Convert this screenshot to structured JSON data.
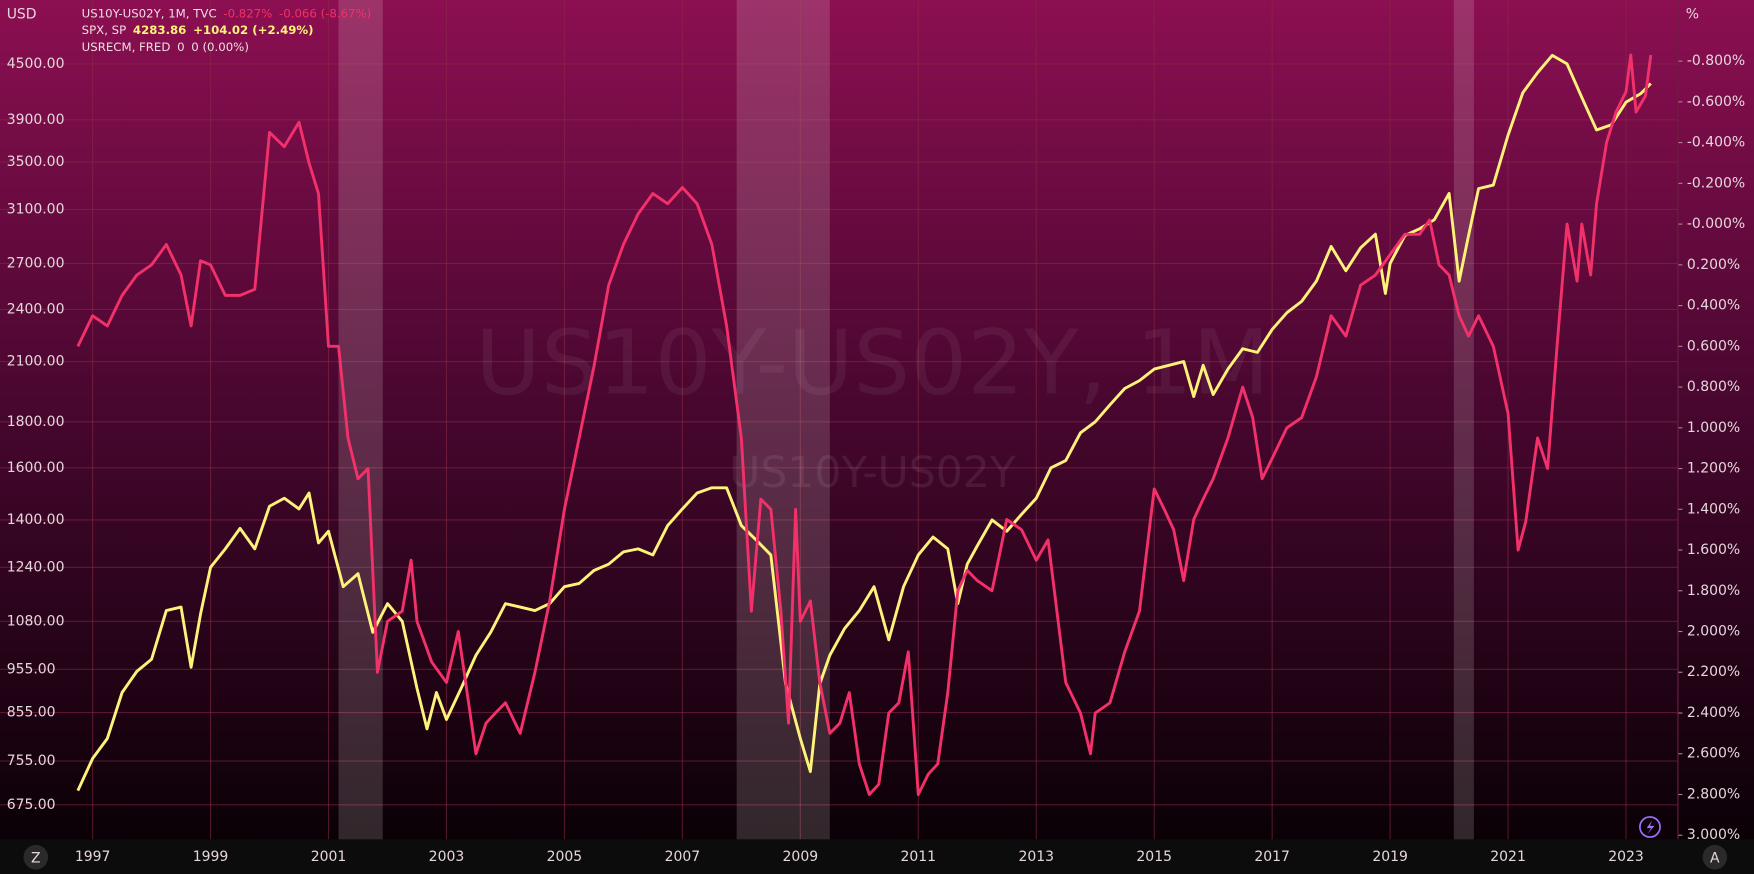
{
  "chart_data": {
    "type": "line",
    "watermark": [
      "US10Y-US02Y, 1M",
      "US10Y-US02Y"
    ],
    "y_unit": "USD",
    "y2_unit": "%",
    "xlim": [
      1995.43,
      2023.88
    ],
    "xticks": [
      1997,
      1999,
      2001,
      2003,
      2005,
      2007,
      2009,
      2011,
      2013,
      2015,
      2017,
      2019,
      2021,
      2023
    ],
    "ylim": [
      618,
      5300
    ],
    "log_y": true,
    "yticks": [
      {
        "value": 675,
        "label": "675.00"
      },
      {
        "value": 755,
        "label": "755.00"
      },
      {
        "value": 855,
        "label": "855.00"
      },
      {
        "value": 955,
        "label": "955.00"
      },
      {
        "value": 1080,
        "label": "1080.00"
      },
      {
        "value": 1240,
        "label": "1240.00"
      },
      {
        "value": 1400,
        "label": "1400.00"
      },
      {
        "value": 1600,
        "label": "1600.00"
      },
      {
        "value": 1800,
        "label": "1800.00"
      },
      {
        "value": 2100,
        "label": "2100.00"
      },
      {
        "value": 2400,
        "label": "2400.00"
      },
      {
        "value": 2700,
        "label": "2700.00"
      },
      {
        "value": 3100,
        "label": "3100.00"
      },
      {
        "value": 3500,
        "label": "3500.00"
      },
      {
        "value": 3900,
        "label": "3900.00"
      },
      {
        "value": 4500,
        "label": "4500.00"
      }
    ],
    "y2lim": [
      -1.1,
      3.02
    ],
    "y2_inverted": true,
    "y2ticks": [
      {
        "value": -0.8,
        "label": "-0.800%"
      },
      {
        "value": -0.6,
        "label": "-0.600%"
      },
      {
        "value": -0.4,
        "label": "-0.400%"
      },
      {
        "value": -0.2,
        "label": "-0.200%"
      },
      {
        "value": 0,
        "label": "-0.000%"
      },
      {
        "value": 0.2,
        "label": "0.200%"
      },
      {
        "value": 0.4,
        "label": "0.400%"
      },
      {
        "value": 0.6,
        "label": "0.600%"
      },
      {
        "value": 0.8,
        "label": "0.800%"
      },
      {
        "value": 1.0,
        "label": "1.000%"
      },
      {
        "value": 1.2,
        "label": "1.200%"
      },
      {
        "value": 1.4,
        "label": "1.400%"
      },
      {
        "value": 1.6,
        "label": "1.600%"
      },
      {
        "value": 1.8,
        "label": "1.800%"
      },
      {
        "value": 2.0,
        "label": "2.000%"
      },
      {
        "value": 2.2,
        "label": "2.200%"
      },
      {
        "value": 2.4,
        "label": "2.400%"
      },
      {
        "value": 2.6,
        "label": "2.600%"
      },
      {
        "value": 2.8,
        "label": "2.800%"
      },
      {
        "value": 3.0,
        "label": "3.000%"
      }
    ],
    "grid": true,
    "series": [
      {
        "name": "US10Y-US02Y, 1M, TVC",
        "header_value": "-0.827%",
        "header_change": "-0.066 (-8.67%)",
        "color": "#f2306a",
        "axis": "y2",
        "x": [
          1996.75,
          1997.0,
          1997.25,
          1997.5,
          1997.75,
          1998.0,
          1998.25,
          1998.5,
          1998.67,
          1998.83,
          1999.0,
          1999.25,
          1999.5,
          1999.75,
          2000.0,
          2000.25,
          2000.5,
          2000.67,
          2000.83,
          2001.0,
          2001.17,
          2001.33,
          2001.5,
          2001.67,
          2001.83,
          2002.0,
          2002.25,
          2002.4,
          2002.5,
          2002.75,
          2003.0,
          2003.2,
          2003.5,
          2003.67,
          2003.83,
          2004.0,
          2004.25,
          2004.5,
          2004.75,
          2005.0,
          2005.25,
          2005.5,
          2005.75,
          2006.0,
          2006.25,
          2006.5,
          2006.75,
          2007.0,
          2007.25,
          2007.5,
          2007.75,
          2008.0,
          2008.17,
          2008.33,
          2008.5,
          2008.67,
          2008.8,
          2008.92,
          2009.0,
          2009.17,
          2009.33,
          2009.5,
          2009.67,
          2009.83,
          2010.0,
          2010.17,
          2010.33,
          2010.5,
          2010.67,
          2010.83,
          2011.0,
          2011.17,
          2011.33,
          2011.5,
          2011.67,
          2011.83,
          2012.0,
          2012.25,
          2012.5,
          2012.75,
          2013.0,
          2013.2,
          2013.5,
          2013.75,
          2013.92,
          2014.0,
          2014.25,
          2014.5,
          2014.75,
          2015.0,
          2015.17,
          2015.33,
          2015.5,
          2015.67,
          2015.83,
          2016.0,
          2016.25,
          2016.5,
          2016.67,
          2016.83,
          2017.0,
          2017.25,
          2017.5,
          2017.75,
          2018.0,
          2018.25,
          2018.5,
          2018.75,
          2019.0,
          2019.25,
          2019.5,
          2019.67,
          2019.83,
          2020.0,
          2020.17,
          2020.33,
          2020.5,
          2020.75,
          2021.0,
          2021.17,
          2021.3,
          2021.5,
          2021.67,
          2021.83,
          2022.0,
          2022.17,
          2022.25,
          2022.4,
          2022.5,
          2022.67,
          2022.83,
          2023.0,
          2023.08,
          2023.17,
          2023.33,
          2023.42
        ],
        "values": [
          0.6,
          0.45,
          0.5,
          0.35,
          0.25,
          0.2,
          0.1,
          0.25,
          0.5,
          0.18,
          0.2,
          0.35,
          0.35,
          0.32,
          -0.45,
          -0.38,
          -0.5,
          -0.3,
          -0.15,
          0.6,
          0.6,
          1.05,
          1.25,
          1.2,
          2.2,
          1.95,
          1.9,
          1.65,
          1.95,
          2.15,
          2.25,
          2.0,
          2.6,
          2.45,
          2.4,
          2.35,
          2.5,
          2.2,
          1.85,
          1.4,
          1.05,
          0.7,
          0.3,
          0.1,
          -0.05,
          -0.15,
          -0.1,
          -0.18,
          -0.1,
          0.1,
          0.5,
          1.05,
          1.9,
          1.35,
          1.4,
          1.9,
          2.45,
          1.4,
          1.95,
          1.85,
          2.25,
          2.5,
          2.45,
          2.3,
          2.65,
          2.8,
          2.75,
          2.4,
          2.35,
          2.1,
          2.8,
          2.7,
          2.65,
          2.3,
          1.8,
          1.7,
          1.75,
          1.8,
          1.45,
          1.5,
          1.65,
          1.55,
          2.25,
          2.4,
          2.6,
          2.4,
          2.35,
          2.1,
          1.9,
          1.3,
          1.4,
          1.5,
          1.75,
          1.45,
          1.35,
          1.25,
          1.05,
          0.8,
          0.95,
          1.25,
          1.15,
          1.0,
          0.95,
          0.75,
          0.45,
          0.55,
          0.3,
          0.25,
          0.15,
          0.05,
          0.05,
          -0.02,
          0.2,
          0.25,
          0.45,
          0.55,
          0.45,
          0.6,
          0.93,
          1.6,
          1.46,
          1.05,
          1.2,
          0.6,
          0.0,
          0.28,
          0.0,
          0.25,
          -0.1,
          -0.4,
          -0.55,
          -0.65,
          -0.83,
          -0.55,
          -0.63,
          -0.83
        ]
      },
      {
        "name": "SPX, SP",
        "header_value": "4283.86",
        "header_change": "+104.02 (+2.49%)",
        "color": "#fff27a",
        "x": [
          1996.75,
          1997.0,
          1997.25,
          1997.5,
          1997.75,
          1998.0,
          1998.25,
          1998.5,
          1998.67,
          1998.83,
          1999.0,
          1999.25,
          1999.5,
          1999.75,
          2000.0,
          2000.25,
          2000.5,
          2000.67,
          2000.83,
          2001.0,
          2001.25,
          2001.5,
          2001.75,
          2002.0,
          2002.25,
          2002.5,
          2002.67,
          2002.83,
          2003.0,
          2003.25,
          2003.5,
          2003.75,
          2004.0,
          2004.25,
          2004.5,
          2004.75,
          2005.0,
          2005.25,
          2005.5,
          2005.75,
          2006.0,
          2006.25,
          2006.5,
          2006.75,
          2007.0,
          2007.25,
          2007.5,
          2007.75,
          2008.0,
          2008.25,
          2008.5,
          2008.75,
          2009.0,
          2009.17,
          2009.33,
          2009.5,
          2009.75,
          2010.0,
          2010.25,
          2010.5,
          2010.75,
          2011.0,
          2011.25,
          2011.5,
          2011.67,
          2011.83,
          2012.0,
          2012.25,
          2012.5,
          2012.75,
          2013.0,
          2013.25,
          2013.5,
          2013.75,
          2014.0,
          2014.25,
          2014.5,
          2014.75,
          2015.0,
          2015.25,
          2015.5,
          2015.67,
          2015.83,
          2016.0,
          2016.25,
          2016.5,
          2016.75,
          2017.0,
          2017.25,
          2017.5,
          2017.75,
          2018.0,
          2018.25,
          2018.5,
          2018.75,
          2018.92,
          2019.0,
          2019.25,
          2019.5,
          2019.75,
          2020.0,
          2020.17,
          2020.33,
          2020.5,
          2020.75,
          2021.0,
          2021.25,
          2021.5,
          2021.75,
          2022.0,
          2022.25,
          2022.5,
          2022.75,
          2023.0,
          2023.25,
          2023.42
        ],
        "values": [
          700,
          760,
          800,
          900,
          950,
          980,
          1110,
          1120,
          960,
          1100,
          1240,
          1300,
          1370,
          1300,
          1450,
          1480,
          1440,
          1500,
          1320,
          1360,
          1180,
          1220,
          1050,
          1130,
          1080,
          910,
          820,
          900,
          840,
          910,
          990,
          1050,
          1130,
          1120,
          1110,
          1130,
          1180,
          1190,
          1230,
          1250,
          1290,
          1300,
          1280,
          1380,
          1440,
          1500,
          1520,
          1520,
          1380,
          1330,
          1280,
          920,
          800,
          735,
          920,
          990,
          1060,
          1110,
          1180,
          1030,
          1180,
          1280,
          1340,
          1300,
          1130,
          1250,
          1310,
          1400,
          1360,
          1420,
          1480,
          1600,
          1630,
          1750,
          1800,
          1880,
          1960,
          2000,
          2060,
          2080,
          2100,
          1920,
          2080,
          1930,
          2060,
          2170,
          2150,
          2280,
          2380,
          2450,
          2580,
          2820,
          2650,
          2810,
          2910,
          2500,
          2700,
          2900,
          2950,
          3020,
          3230,
          2580,
          2900,
          3270,
          3300,
          3750,
          4180,
          4400,
          4600,
          4500,
          4130,
          3800,
          3850,
          4080,
          4170,
          4280
        ]
      }
    ],
    "recession": {
      "name": "USRECM, FRED",
      "header_value": "0",
      "header_change": "0 (0.00%)",
      "color": "#e8d8d8",
      "periods": [
        [
          2001.17,
          2001.92
        ],
        [
          2007.92,
          2009.5
        ],
        [
          2020.08,
          2020.42
        ]
      ]
    },
    "buttons": [
      "Z",
      "A"
    ]
  }
}
